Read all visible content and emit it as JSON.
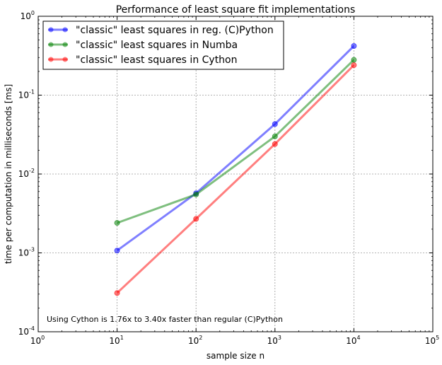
{
  "chart_data": {
    "type": "line",
    "title": "Performance of least square fit implementations",
    "xlabel": "sample size n",
    "ylabel": "time per computation in milliseconds [ms]",
    "x_scale": "log",
    "y_scale": "log",
    "xlim": [
      1,
      100000
    ],
    "ylim": [
      0.0001,
      1
    ],
    "x_ticks": [
      {
        "value": 1,
        "base": "10",
        "exp": "0"
      },
      {
        "value": 10,
        "base": "10",
        "exp": "1"
      },
      {
        "value": 100,
        "base": "10",
        "exp": "2"
      },
      {
        "value": 1000,
        "base": "10",
        "exp": "3"
      },
      {
        "value": 10000,
        "base": "10",
        "exp": "4"
      },
      {
        "value": 100000,
        "base": "10",
        "exp": "5"
      }
    ],
    "y_ticks": [
      {
        "value": 0.0001,
        "base": "10",
        "exp": "-4"
      },
      {
        "value": 0.001,
        "base": "10",
        "exp": "-3"
      },
      {
        "value": 0.01,
        "base": "10",
        "exp": "-2"
      },
      {
        "value": 0.1,
        "base": "10",
        "exp": "-1"
      },
      {
        "value": 1,
        "base": "10",
        "exp": "0"
      }
    ],
    "grid": true,
    "legend_position": "top-left",
    "x": [
      10,
      100,
      1000,
      10000
    ],
    "series": [
      {
        "name": "\"classic\" least squares in reg. (C)Python",
        "color": "#0000ff",
        "values": [
          0.00107,
          0.0057,
          0.043,
          0.42
        ]
      },
      {
        "name": "\"classic\" least squares in Numba",
        "color": "#008000",
        "values": [
          0.0024,
          0.0055,
          0.03,
          0.28
        ]
      },
      {
        "name": "\"classic\" least squares in Cython",
        "color": "#ff0000",
        "values": [
          0.00031,
          0.0027,
          0.024,
          0.24
        ]
      }
    ],
    "annotations": [
      {
        "text": "Using Cython is 1.76x to 3.40x faster than regular (C)Python"
      }
    ]
  }
}
